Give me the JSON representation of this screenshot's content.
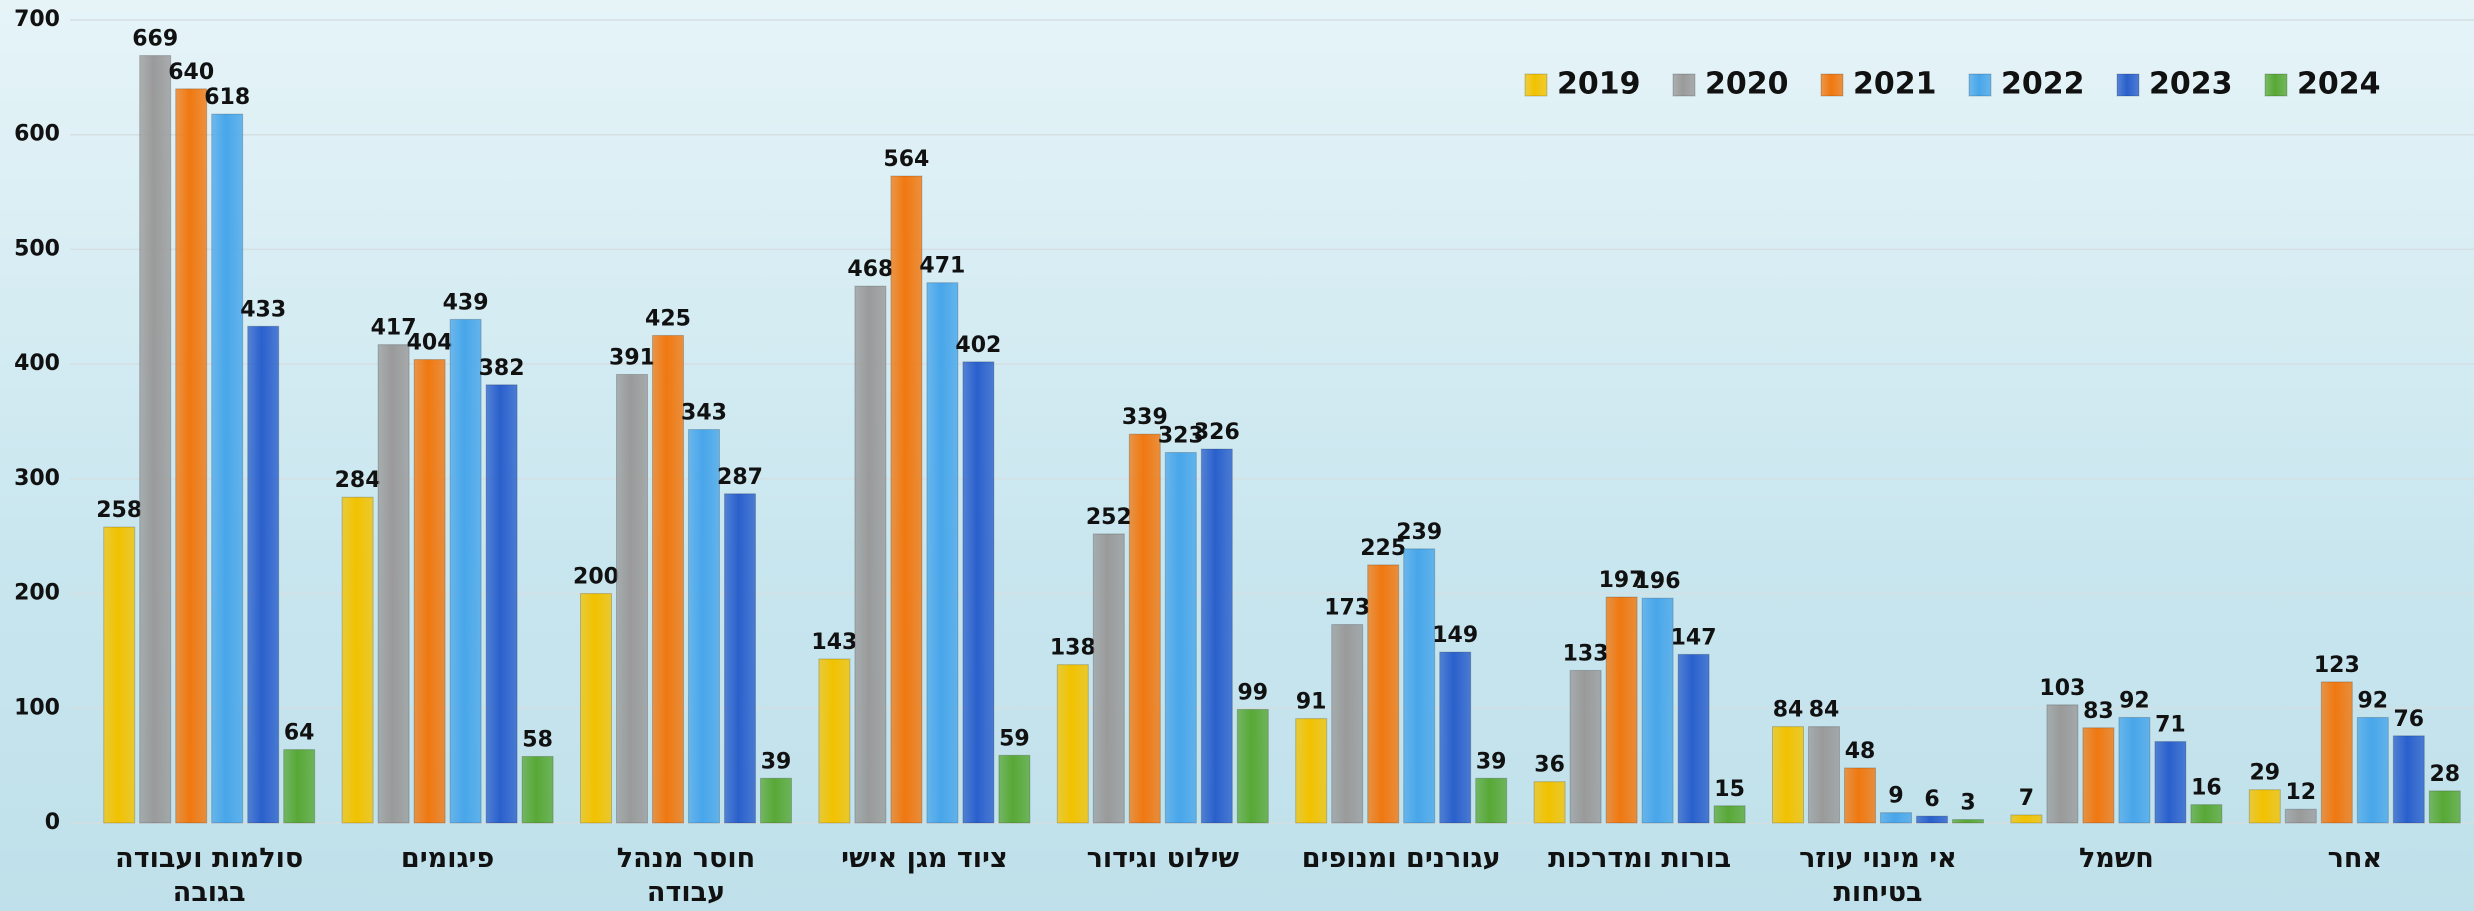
{
  "chart_data": {
    "type": "bar",
    "categories": [
      "סולמות ועבודה בגובה",
      "פיגומים",
      "חוסר מנהל עבודה",
      "ציוד מגן אישי",
      "שילוט וגידור",
      "עגורנים ומנופים",
      "בורות ומדרכות",
      "אי מינוי עוזר בטיחות",
      "חשמל",
      "אחר"
    ],
    "series": [
      {
        "name": "2019",
        "color": "#f2c200",
        "values": [
          258,
          284,
          200,
          143,
          138,
          91,
          36,
          84,
          7,
          29
        ]
      },
      {
        "name": "2020",
        "color": "#9a9a9a",
        "values": [
          669,
          417,
          391,
          468,
          252,
          173,
          133,
          84,
          103,
          12
        ]
      },
      {
        "name": "2021",
        "color": "#f07810",
        "values": [
          640,
          404,
          425,
          564,
          339,
          225,
          197,
          48,
          83,
          123
        ]
      },
      {
        "name": "2022",
        "color": "#48a6ea",
        "values": [
          618,
          439,
          343,
          471,
          323,
          239,
          196,
          9,
          92,
          92
        ]
      },
      {
        "name": "2023",
        "color": "#2a60cc",
        "values": [
          433,
          382,
          287,
          402,
          326,
          149,
          147,
          6,
          71,
          76
        ]
      },
      {
        "name": "2024",
        "color": "#58a836",
        "values": [
          64,
          58,
          39,
          59,
          99,
          39,
          15,
          3,
          16,
          28
        ]
      }
    ],
    "ylim": [
      0,
      700
    ],
    "yticks": [
      0,
      100,
      200,
      300,
      400,
      500,
      600,
      700
    ],
    "grid": true,
    "legend": "top-right"
  }
}
